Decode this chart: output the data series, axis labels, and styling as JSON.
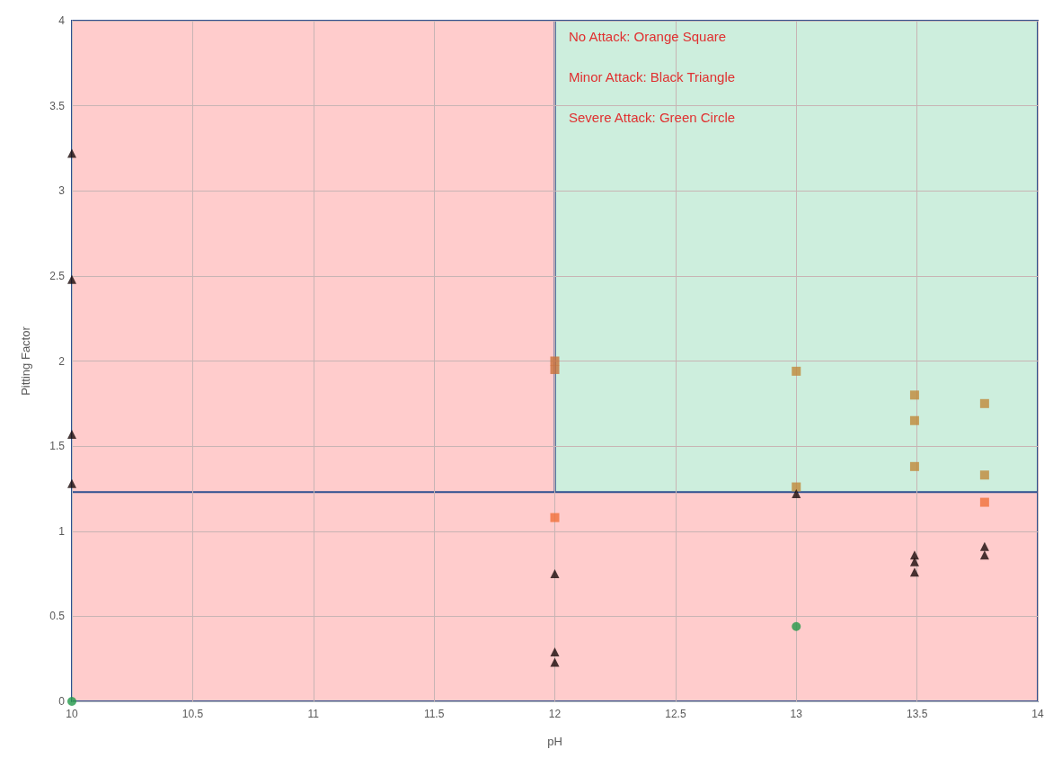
{
  "chart_data": {
    "type": "scatter",
    "xlabel": "pH",
    "ylabel": "Pitting Factor",
    "xlim": [
      10,
      14
    ],
    "xticks": [
      10,
      10.5,
      11,
      11.5,
      12,
      12.5,
      13,
      13.5,
      14
    ],
    "ylim": [
      0,
      4
    ],
    "yticks": [
      0,
      0.5,
      1,
      1.5,
      2,
      2.5,
      3,
      3.5,
      4
    ],
    "grid": true,
    "bands": [
      {
        "axis": "x",
        "from": 12,
        "to": 14,
        "color": "#cdeedd"
      },
      {
        "axis": "x",
        "from": 10,
        "to": 12,
        "color": "#ffcccc"
      },
      {
        "axis": "y",
        "from": 0,
        "to": 1.23,
        "color": "#ffcccc"
      }
    ],
    "annotations": [
      "No Attack: Orange Square",
      "Minor Attack: Black Triangle",
      "Severe Attack: Green Circle"
    ],
    "series": [
      {
        "marker": "square",
        "x": [
          12,
          12,
          12,
          13,
          13,
          13.49,
          13.49,
          13.49,
          13.78,
          13.78,
          13.78
        ],
        "values": [
          2.0,
          1.95,
          1.08,
          1.94,
          1.26,
          1.8,
          1.65,
          1.38,
          1.75,
          1.33,
          1.17
        ],
        "colors": [
          "#c8703a",
          "#c8703a",
          "#f0703a",
          "#c0883a",
          "#c0883a",
          "#c0883a",
          "#c0883a",
          "#c0883a",
          "#c0883a",
          "#c0883a",
          "#f0703a"
        ]
      },
      {
        "marker": "triangle",
        "color": "#1a0a0a",
        "x": [
          10,
          10,
          10,
          10,
          12,
          12,
          12,
          13,
          13.49,
          13.49,
          13.49,
          13.78,
          13.78
        ],
        "values": [
          3.22,
          2.48,
          1.57,
          1.28,
          0.75,
          0.29,
          0.23,
          1.22,
          0.86,
          0.82,
          0.76,
          0.91,
          0.86
        ]
      },
      {
        "marker": "circle",
        "color": "#22994a",
        "x": [
          10,
          13
        ],
        "values": [
          0,
          0.44
        ]
      }
    ]
  }
}
